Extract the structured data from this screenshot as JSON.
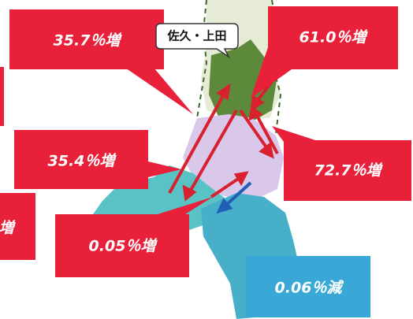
{
  "region_label": "佐久・上田",
  "callouts": [
    "35.7％増",
    "61.0％増",
    "35.4％増",
    "72.7％増",
    "0.05％増",
    "0.06％減",
    "増"
  ]
}
